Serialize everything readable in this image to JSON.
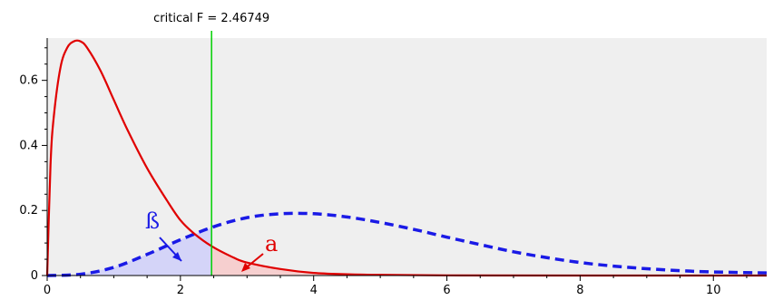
{
  "chart_data": {
    "type": "line",
    "title": "",
    "xlabel": "",
    "ylabel": "",
    "xlim": [
      0,
      10.8
    ],
    "ylim": [
      0,
      0.73
    ],
    "x_ticks": [
      0,
      2,
      4,
      6,
      8,
      10
    ],
    "y_ticks": [
      0,
      0.2,
      0.4,
      0.6
    ],
    "x_tick_labels": [
      "0",
      "2",
      "4",
      "6",
      "8",
      "10"
    ],
    "y_tick_labels": [
      "0",
      "0.2",
      "0.4",
      "0.6"
    ],
    "grid": false,
    "critical_value": 2.46749,
    "critical_label": "critical F = 2.46749",
    "series": [
      {
        "style": "solid",
        "color": "#e00000",
        "x": [
          0,
          0.05,
          0.1,
          0.2,
          0.3,
          0.4,
          0.5,
          0.6,
          0.8,
          1.0,
          1.2,
          1.5,
          1.8,
          2.0,
          2.2,
          2.47,
          2.8,
          3.0,
          3.5,
          4.0,
          4.5,
          5.0,
          6.0,
          8.0,
          10.8
        ],
        "values": [
          0,
          0.34,
          0.49,
          0.64,
          0.7,
          0.72,
          0.72,
          0.7,
          0.63,
          0.54,
          0.45,
          0.33,
          0.23,
          0.17,
          0.13,
          0.09,
          0.055,
          0.04,
          0.02,
          0.008,
          0.004,
          0.002,
          0.0005,
          0.0,
          0.0
        ]
      },
      {
        "style": "dashed",
        "color": "#1a1ae6",
        "x": [
          0,
          0.5,
          1.0,
          1.5,
          2.0,
          2.5,
          3.0,
          3.5,
          4.0,
          4.5,
          5.0,
          5.5,
          6.0,
          6.5,
          7.0,
          7.5,
          8.0,
          8.5,
          9.0,
          9.5,
          10.0,
          10.8
        ],
        "values": [
          0,
          0.004,
          0.025,
          0.065,
          0.11,
          0.15,
          0.178,
          0.19,
          0.19,
          0.18,
          0.163,
          0.142,
          0.118,
          0.095,
          0.073,
          0.055,
          0.04,
          0.029,
          0.021,
          0.015,
          0.011,
          0.008
        ]
      }
    ],
    "annotations": [
      {
        "text": "ß",
        "color": "#1a1ae6"
      },
      {
        "text": "a",
        "color": "#e00000"
      }
    ]
  },
  "colors": {
    "plot_bg": "#efefef",
    "beta_fill": "#d4d4f8",
    "alpha_fill": "#f6cfcf",
    "critical_line": "#00d000"
  }
}
